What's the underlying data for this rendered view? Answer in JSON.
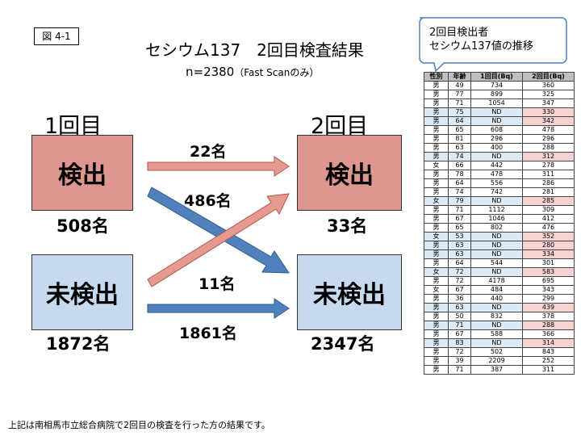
{
  "figure_label": "図 4-1",
  "title": "セシウム137　2回目検査結果",
  "subtitle_main": "n=2380",
  "subtitle_note": "（Fast Scanのみ）",
  "first_round_label": "1回目",
  "second_round_label": "2回目",
  "first_detected_box": "検出",
  "first_undetected_box": "未検出",
  "second_detected_box": "検出",
  "second_undetected_box": "未検出",
  "first_detected_count": "508名",
  "first_undetected_count": "1872名",
  "second_detected_count": "33名",
  "second_undetected_count": "2347名",
  "flow_labels": {
    "detected_to_detected": "22名",
    "detected_to_undetected": "486名",
    "undetected_to_detected": "11名",
    "undetected_to_undetected": "1861名"
  },
  "callout_text_line1": "2回目検出者",
  "callout_text_line2": "セシウム137値の推移",
  "footnote": "上記は南相馬市立総合病院で2回目の検査を行った方の結果です。",
  "table": {
    "headers": [
      "性別",
      "年齢",
      "1回目(Bq)",
      "2回目(Bq)"
    ],
    "rows": [
      [
        "男",
        "49",
        "734",
        "360"
      ],
      [
        "男",
        "77",
        "899",
        "325"
      ],
      [
        "男",
        "71",
        "1054",
        "347"
      ],
      [
        "男",
        "75",
        "ND",
        "330"
      ],
      [
        "男",
        "64",
        "ND",
        "342"
      ],
      [
        "男",
        "65",
        "608",
        "478"
      ],
      [
        "男",
        "81",
        "296",
        "296"
      ],
      [
        "男",
        "63",
        "400",
        "288"
      ],
      [
        "男",
        "74",
        "ND",
        "312"
      ],
      [
        "女",
        "66",
        "442",
        "278"
      ],
      [
        "男",
        "78",
        "478",
        "311"
      ],
      [
        "男",
        "64",
        "556",
        "286"
      ],
      [
        "男",
        "74",
        "742",
        "281"
      ],
      [
        "女",
        "79",
        "ND",
        "285"
      ],
      [
        "男",
        "71",
        "1112",
        "309"
      ],
      [
        "男",
        "67",
        "1046",
        "412"
      ],
      [
        "男",
        "65",
        "802",
        "476"
      ],
      [
        "女",
        "53",
        "ND",
        "352"
      ],
      [
        "男",
        "63",
        "ND",
        "280"
      ],
      [
        "男",
        "63",
        "ND",
        "334"
      ],
      [
        "男",
        "64",
        "544",
        "301"
      ],
      [
        "女",
        "72",
        "ND",
        "583"
      ],
      [
        "男",
        "72",
        "4178",
        "695"
      ],
      [
        "女",
        "67",
        "484",
        "343"
      ],
      [
        "男",
        "36",
        "440",
        "299"
      ],
      [
        "男",
        "63",
        "ND",
        "439"
      ],
      [
        "男",
        "50",
        "832",
        "378"
      ],
      [
        "男",
        "71",
        "ND",
        "288"
      ],
      [
        "男",
        "67",
        "588",
        "366"
      ],
      [
        "男",
        "83",
        "ND",
        "314"
      ],
      [
        "男",
        "72",
        "502",
        "843"
      ],
      [
        "男",
        "39",
        "2209",
        "252"
      ],
      [
        "男",
        "71",
        "387",
        "311"
      ]
    ]
  },
  "colors": {
    "detected_box": "#dd9690",
    "undetected_box": "#c6d9ef",
    "red_arrow": "#e5998f",
    "blue_arrow": "#4f81bd",
    "nd_cell": "#dbeaf5",
    "second_from_nd_cell": "#f6d3d0"
  },
  "chart_data": {
    "type": "table",
    "title": "セシウム137　2回目検査結果",
    "subtitle": "n=2380（Fast Scanのみ）",
    "flows": [
      {
        "from": "1回目 検出",
        "to": "2回目 検出",
        "value": 22
      },
      {
        "from": "1回目 検出",
        "to": "2回目 未検出",
        "value": 486
      },
      {
        "from": "1回目 未検出",
        "to": "2回目 検出",
        "value": 11
      },
      {
        "from": "1回目 未検出",
        "to": "2回目 未検出",
        "value": 1861
      }
    ],
    "totals": {
      "first_detected": 508,
      "first_undetected": 1872,
      "second_detected": 33,
      "second_undetected": 2347
    }
  }
}
